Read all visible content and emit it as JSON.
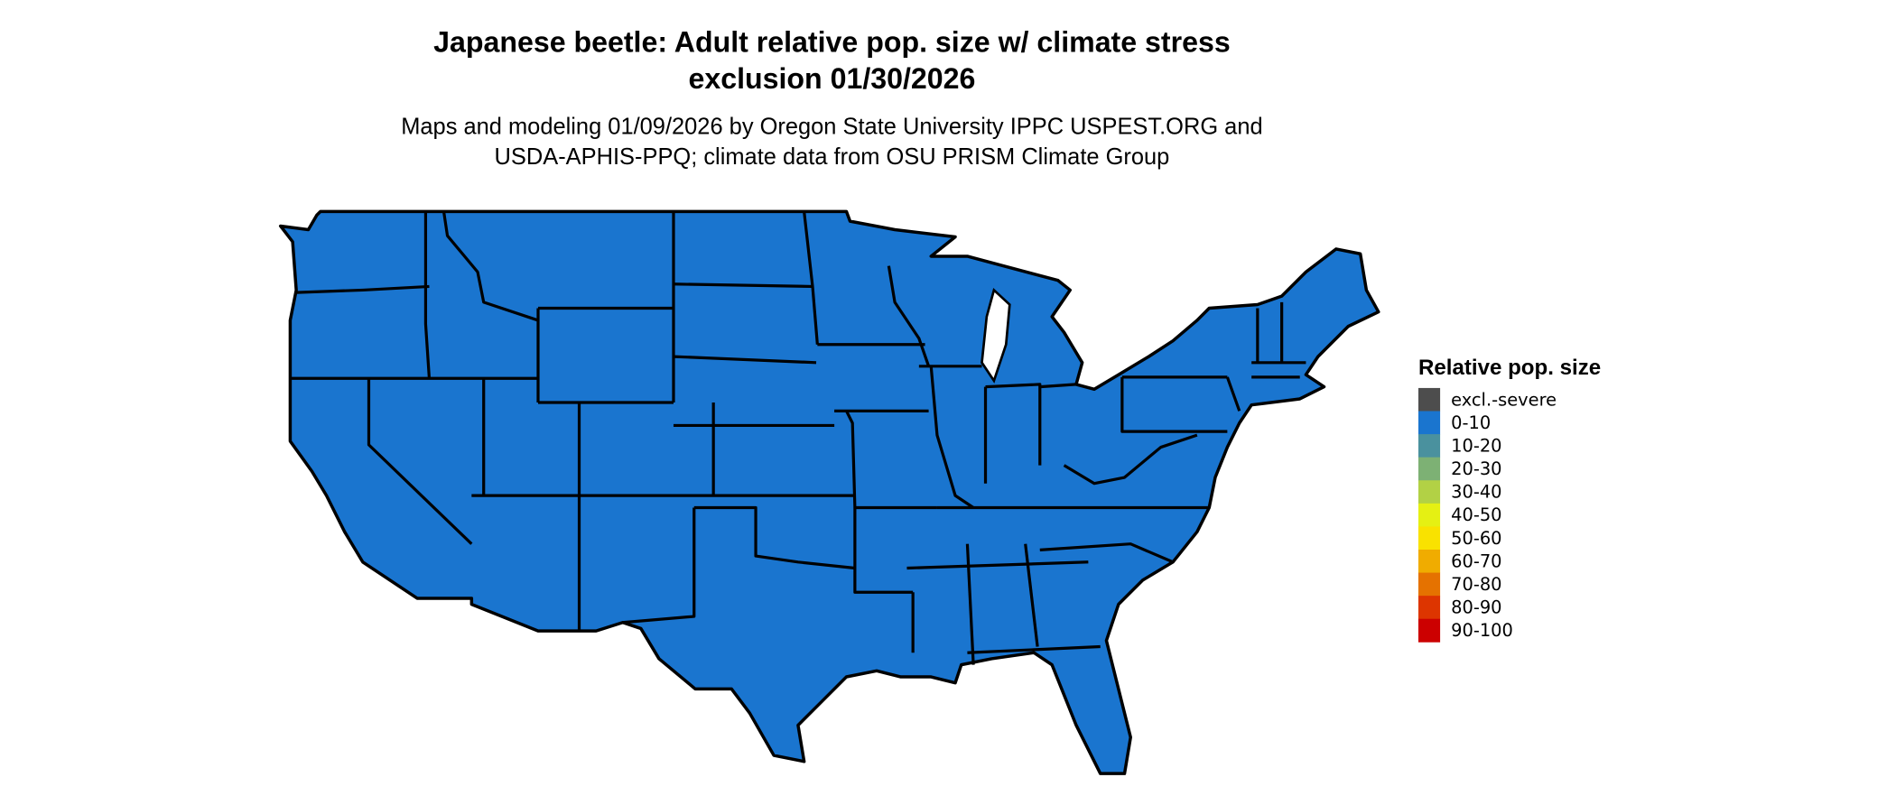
{
  "chart_data": {
    "type": "map",
    "title": [
      "Japanese beetle: Adult relative pop. size w/ climate stress",
      "exclusion 01/30/2026"
    ],
    "subtitle": [
      "Maps and modeling 01/09/2026 by Oregon State University IPPC USPEST.ORG and",
      "USDA-APHIS-PPQ; climate data from OSU PRISM Climate Group"
    ],
    "region": "Contiguous United States",
    "displayed_category": "0-10",
    "legend": {
      "title": "Relative pop. size",
      "placement": "right",
      "items": [
        {
          "label": "excl.-severe",
          "color": "#4d4d4d"
        },
        {
          "label": "0-10",
          "color": "#1a75cf"
        },
        {
          "label": "10-20",
          "color": "#4a919e"
        },
        {
          "label": "20-30",
          "color": "#7db174"
        },
        {
          "label": "30-40",
          "color": "#b2d145"
        },
        {
          "label": "40-50",
          "color": "#e5f013"
        },
        {
          "label": "50-60",
          "color": "#f9e200"
        },
        {
          "label": "60-70",
          "color": "#f0ac00"
        },
        {
          "label": "70-80",
          "color": "#e57200"
        },
        {
          "label": "80-90",
          "color": "#dd3500"
        },
        {
          "label": "90-100",
          "color": "#cc0000"
        }
      ]
    }
  }
}
